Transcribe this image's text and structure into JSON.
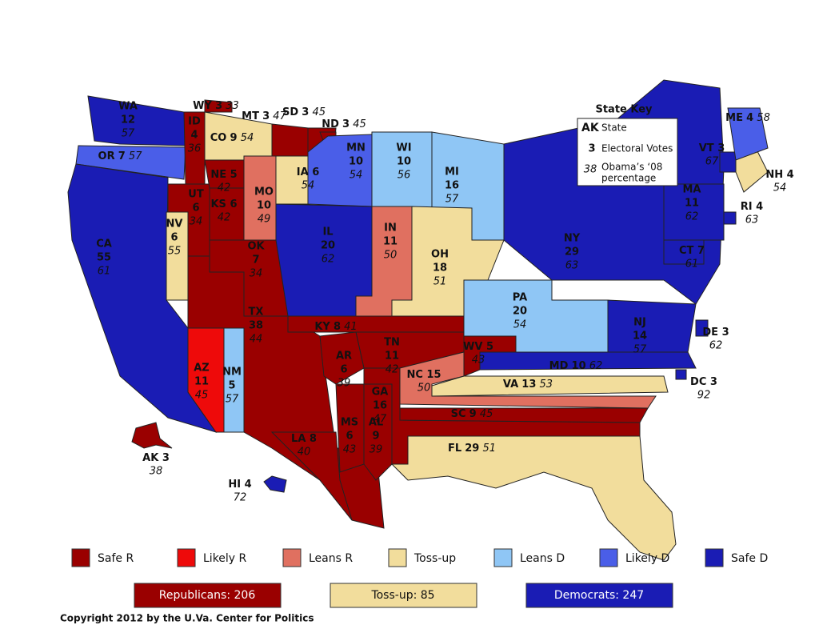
{
  "map": {
    "ratings": [
      {
        "label": "Safe R",
        "color": "#9a0000"
      },
      {
        "label": "Likely R",
        "color": "#ee0a0a"
      },
      {
        "label": "Leans R",
        "color": "#e07060"
      },
      {
        "label": "Toss-up",
        "color": "#f2dd9c"
      },
      {
        "label": "Leans D",
        "color": "#8fc6f5"
      },
      {
        "label": "Likely D",
        "color": "#4a5ee8"
      },
      {
        "label": "Safe D",
        "color": "#1a1cb4"
      }
    ],
    "states": [
      {
        "abbr": "WA",
        "ev": 12,
        "pct": 57,
        "rating": "Safe D"
      },
      {
        "abbr": "OR",
        "ev": 7,
        "pct": 57,
        "rating": "Likely D"
      },
      {
        "abbr": "CA",
        "ev": 55,
        "pct": 61,
        "rating": "Safe D"
      },
      {
        "abbr": "ID",
        "ev": 4,
        "pct": 36,
        "rating": "Safe R"
      },
      {
        "abbr": "NV",
        "ev": 6,
        "pct": 55,
        "rating": "Toss-up"
      },
      {
        "abbr": "UT",
        "ev": 6,
        "pct": 34,
        "rating": "Safe R"
      },
      {
        "abbr": "AZ",
        "ev": 11,
        "pct": 45,
        "rating": "Likely R"
      },
      {
        "abbr": "NM",
        "ev": 5,
        "pct": 57,
        "rating": "Leans D"
      },
      {
        "abbr": "MT",
        "ev": 3,
        "pct": 47,
        "rating": "Safe R"
      },
      {
        "abbr": "WY",
        "ev": 3,
        "pct": 33,
        "rating": "Safe R"
      },
      {
        "abbr": "SD",
        "ev": 3,
        "pct": 45,
        "rating": "Safe R"
      },
      {
        "abbr": "ND",
        "ev": 3,
        "pct": 45,
        "rating": "Safe R"
      },
      {
        "abbr": "CO",
        "ev": 9,
        "pct": 54,
        "rating": "Toss-up"
      },
      {
        "abbr": "NE",
        "ev": 5,
        "pct": 42,
        "rating": "Safe R"
      },
      {
        "abbr": "KS",
        "ev": 6,
        "pct": 42,
        "rating": "Safe R"
      },
      {
        "abbr": "MO",
        "ev": 10,
        "pct": 49,
        "rating": "Leans R"
      },
      {
        "abbr": "IA",
        "ev": 6,
        "pct": 54,
        "rating": "Toss-up"
      },
      {
        "abbr": "MN",
        "ev": 10,
        "pct": 54,
        "rating": "Likely D"
      },
      {
        "abbr": "WI",
        "ev": 10,
        "pct": 56,
        "rating": "Leans D"
      },
      {
        "abbr": "MI",
        "ev": 16,
        "pct": 57,
        "rating": "Leans D"
      },
      {
        "abbr": "IL",
        "ev": 20,
        "pct": 62,
        "rating": "Safe D"
      },
      {
        "abbr": "IN",
        "ev": 11,
        "pct": 50,
        "rating": "Leans R"
      },
      {
        "abbr": "OH",
        "ev": 18,
        "pct": 51,
        "rating": "Toss-up"
      },
      {
        "abbr": "OK",
        "ev": 7,
        "pct": 34,
        "rating": "Safe R"
      },
      {
        "abbr": "TX",
        "ev": 38,
        "pct": 44,
        "rating": "Safe R"
      },
      {
        "abbr": "KY",
        "ev": 8,
        "pct": 41,
        "rating": "Safe R"
      },
      {
        "abbr": "TN",
        "ev": 11,
        "pct": 42,
        "rating": "Safe R"
      },
      {
        "abbr": "AR",
        "ev": 6,
        "pct": 39,
        "rating": "Safe R"
      },
      {
        "abbr": "LA",
        "ev": 8,
        "pct": 40,
        "rating": "Safe R"
      },
      {
        "abbr": "MS",
        "ev": 6,
        "pct": 43,
        "rating": "Safe R"
      },
      {
        "abbr": "AL",
        "ev": 9,
        "pct": 39,
        "rating": "Safe R"
      },
      {
        "abbr": "GA",
        "ev": 16,
        "pct": 47,
        "rating": "Safe R"
      },
      {
        "abbr": "FL",
        "ev": 29,
        "pct": 51,
        "rating": "Toss-up"
      },
      {
        "abbr": "SC",
        "ev": 9,
        "pct": 45,
        "rating": "Safe R"
      },
      {
        "abbr": "NC",
        "ev": 15,
        "pct": 50,
        "rating": "Leans R"
      },
      {
        "abbr": "VA",
        "ev": 13,
        "pct": 53,
        "rating": "Toss-up"
      },
      {
        "abbr": "WV",
        "ev": 5,
        "pct": 43,
        "rating": "Safe R"
      },
      {
        "abbr": "PA",
        "ev": 20,
        "pct": 54,
        "rating": "Leans D"
      },
      {
        "abbr": "NY",
        "ev": 29,
        "pct": 63,
        "rating": "Safe D"
      },
      {
        "abbr": "NJ",
        "ev": 14,
        "pct": 57,
        "rating": "Safe D"
      },
      {
        "abbr": "MD",
        "ev": 10,
        "pct": 62,
        "rating": "Safe D"
      },
      {
        "abbr": "DE",
        "ev": 3,
        "pct": 62,
        "rating": "Safe D"
      },
      {
        "abbr": "DC",
        "ev": 3,
        "pct": 92,
        "rating": "Safe D"
      },
      {
        "abbr": "CT",
        "ev": 7,
        "pct": 61,
        "rating": "Safe D"
      },
      {
        "abbr": "RI",
        "ev": 4,
        "pct": 63,
        "rating": "Safe D"
      },
      {
        "abbr": "MA",
        "ev": 11,
        "pct": 62,
        "rating": "Safe D"
      },
      {
        "abbr": "VT",
        "ev": 3,
        "pct": 67,
        "rating": "Safe D"
      },
      {
        "abbr": "NH",
        "ev": 4,
        "pct": 54,
        "rating": "Toss-up"
      },
      {
        "abbr": "ME",
        "ev": 4,
        "pct": 58,
        "rating": "Likely D"
      },
      {
        "abbr": "AK",
        "ev": 3,
        "pct": 38,
        "rating": "Safe R"
      },
      {
        "abbr": "HI",
        "ev": 4,
        "pct": 72,
        "rating": "Safe D"
      }
    ],
    "totals": [
      {
        "label": "Republicans: 206",
        "color": "#9a0000",
        "text_color": "#ffffff"
      },
      {
        "label": "Toss-up: 85",
        "color": "#f2dd9c",
        "text_color": "#111111"
      },
      {
        "label": "Democrats: 247",
        "color": "#1a1cb4",
        "text_color": "#ffffff"
      }
    ],
    "key": {
      "title": "State Key",
      "abbr": "AK",
      "abbr_text": "State",
      "ev": 3,
      "ev_text": "Electoral Votes",
      "pct": 38,
      "pct_text_1": "Obama’s ‘08",
      "pct_text_2": "percentage"
    },
    "copyright": "Copyright 2012 by the U.Va. Center for Politics"
  }
}
